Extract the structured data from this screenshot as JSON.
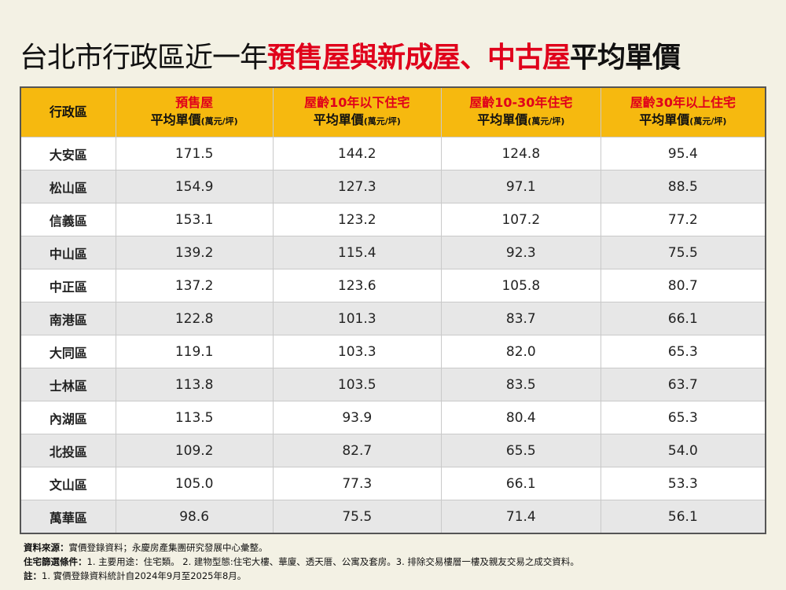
{
  "header": {
    "title": {
      "plain": "台北市行政區近一年",
      "red": "預售屋與新成屋、中古屋",
      "bold": "平均單價"
    }
  },
  "table": {
    "first_header": "行政區",
    "columns": [
      {
        "highlight": "預售屋",
        "main": "平均單價",
        "unit": "(萬元/坪)"
      },
      {
        "highlight": "屋齡10年以下住宅",
        "main": "平均單價",
        "unit": "(萬元/坪)"
      },
      {
        "highlight": "屋齡10-30年住宅",
        "main": "平均單價",
        "unit": "(萬元/坪)"
      },
      {
        "highlight": "屋齡30年以上住宅",
        "main": "平均單價",
        "unit": "(萬元/坪)"
      }
    ],
    "rows": [
      [
        "大安區",
        "171.5",
        "144.2",
        "124.8",
        "95.4"
      ],
      [
        "松山區",
        "154.9",
        "127.3",
        "97.1",
        "88.5"
      ],
      [
        "信義區",
        "153.1",
        "123.2",
        "107.2",
        "77.2"
      ],
      [
        "中山區",
        "139.2",
        "115.4",
        "92.3",
        "75.5"
      ],
      [
        "中正區",
        "137.2",
        "123.6",
        "105.8",
        "80.7"
      ],
      [
        "南港區",
        "122.8",
        "101.3",
        "83.7",
        "66.1"
      ],
      [
        "大同區",
        "119.1",
        "103.3",
        "82.0",
        "65.3"
      ],
      [
        "士林區",
        "113.8",
        "103.5",
        "83.5",
        "63.7"
      ],
      [
        "內湖區",
        "113.5",
        "93.9",
        "80.4",
        "65.3"
      ],
      [
        "北投區",
        "109.2",
        "82.7",
        "65.5",
        "54.0"
      ],
      [
        "文山區",
        "105.0",
        "77.3",
        "66.1",
        "53.3"
      ],
      [
        "萬華區",
        "98.6",
        "75.5",
        "71.4",
        "56.1"
      ]
    ]
  },
  "notes": [
    {
      "label": "資料來源：",
      "text": "實價登錄資料；永慶房產集團研究發展中心彙整。"
    },
    {
      "label": "住宅篩選條件：",
      "text": "1. 主要用途：住宅類。 2. 建物型態:住宅大樓、華廈、透天厝、公寓及套房。3. 排除交易樓層一樓及親友交易之成交資料。"
    },
    {
      "label": "註：",
      "text": "1. 實價登錄資料統計自2024年9月至2025年8月。"
    }
  ]
}
